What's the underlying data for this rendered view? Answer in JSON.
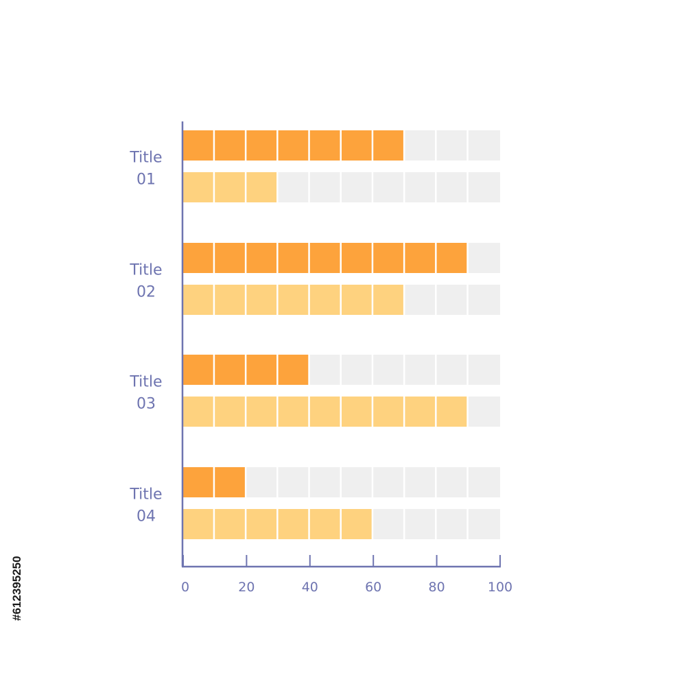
{
  "chart_data": {
    "type": "bar",
    "orientation": "horizontal",
    "categories": [
      [
        "Title",
        "01"
      ],
      [
        "Title",
        "02"
      ],
      [
        "Title",
        "03"
      ],
      [
        "Title",
        "04"
      ]
    ],
    "series": [
      {
        "values": [
          70,
          90,
          40,
          20
        ],
        "color": "#fda33c"
      },
      {
        "values": [
          30,
          70,
          90,
          60
        ],
        "color": "#fed27f"
      }
    ],
    "track_color": "#efefef",
    "axis_color": "#6e74b0",
    "xlim": [
      0,
      100
    ],
    "xticks": [
      0,
      20,
      40,
      60,
      80,
      100
    ],
    "segment_step": 10,
    "grid": false,
    "title": "",
    "xlabel": "",
    "ylabel": ""
  },
  "watermark": {
    "stock_id": "#612395250"
  }
}
